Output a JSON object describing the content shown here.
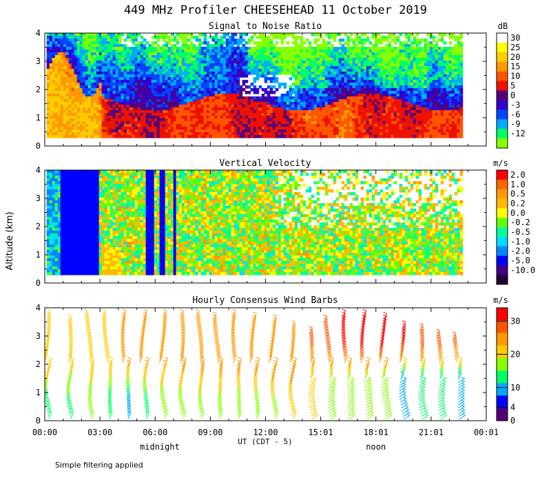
{
  "figure_title": "449 MHz Profiler CHEESEHEAD 11 October 2019",
  "y_axis_label": "Altitude (km)",
  "x_axis_label": "UT  (CDT - 5)",
  "note": "Simple filtering applied",
  "time_ticks": [
    "00:00",
    "03:00",
    "06:00",
    "09:00",
    "12:00",
    "15:01",
    "18:01",
    "21:01",
    "00:01"
  ],
  "local_markers": [
    {
      "label": "midnight",
      "hour_ut": 6.25
    },
    {
      "label": "noon",
      "hour_ut": 18.0
    }
  ],
  "altitude_ticks": [
    "0",
    "1",
    "2",
    "3",
    "4"
  ],
  "chart_data": [
    {
      "type": "heatmap",
      "title": "Signal to Noise Ratio",
      "xlabel": "UT (CDT - 5)",
      "ylabel": "Altitude (km)",
      "xlim_hours": [
        0,
        24
      ],
      "ylim_km": [
        0,
        4
      ],
      "data_range_hours": [
        0.1,
        22.7
      ],
      "min_altitude_km": 0.3,
      "colorbar": {
        "units": "dB",
        "labels": [
          "30",
          "25",
          "20",
          "15",
          "10",
          "5",
          "0",
          "-3",
          "-6",
          "-9",
          "-12"
        ],
        "colors": [
          "#ffffff",
          "#ffff00",
          "#ffcc00",
          "#ff9900",
          "#ff5500",
          "#ee1100",
          "#550077",
          "#3300cc",
          "#0044ff",
          "#00aaff",
          "#00ff66",
          "#88ff00"
        ]
      },
      "notes": "Highest SNR (15-25 dB, orange/yellow) below 2 km from 00:00-03:00; red/orange boundary layer below ~1.5 km through the day; weak signal (blue/green) above 2-3 km."
    },
    {
      "type": "heatmap",
      "title": "Vertical Velocity",
      "xlabel": "UT (CDT - 5)",
      "ylabel": "Altitude (km)",
      "xlim_hours": [
        0,
        24
      ],
      "ylim_km": [
        0,
        4
      ],
      "data_range_hours": [
        0.1,
        22.7
      ],
      "min_altitude_km": 0.3,
      "colorbar": {
        "units": "m/s",
        "labels": [
          "2.0",
          "1.0",
          "0.5",
          "0.2",
          "0.0",
          "-0.2",
          "-0.5",
          "-1.0",
          "-2.0",
          "-5.0",
          "-10.0"
        ],
        "colors": [
          "#ff0000",
          "#ff6600",
          "#ff9900",
          "#ffbb00",
          "#ffff00",
          "#66ff00",
          "#00ff99",
          "#00ddff",
          "#0088ff",
          "#0000ff",
          "#440088",
          "#220033"
        ]
      },
      "notes": "Strong downward motion (-2 to -5 m/s, purple/blue) during 00:00-03:00; mostly weak (-0.5 to +0.5 m/s) afterwards with gaps above 2 km."
    },
    {
      "type": "scatter",
      "title": "Hourly Consensus Wind Barbs",
      "xlabel": "UT (CDT - 5)",
      "ylabel": "Altitude (km)",
      "xlim_hours": [
        0,
        24
      ],
      "ylim_km": [
        0,
        4
      ],
      "colorbar": {
        "units": "m/s",
        "labels": [
          "30",
          "20",
          "10",
          "4",
          "0"
        ],
        "values": [
          30,
          20,
          10,
          4,
          0
        ],
        "colors": [
          "#ff0000",
          "#ff5500",
          "#ff9900",
          "#ffcc00",
          "#88ff00",
          "#00ff66",
          "#00aaff",
          "#0000ff",
          "#550077"
        ]
      },
      "hours": [
        0.3,
        1.5,
        2.6,
        3.6,
        4.6,
        5.6,
        6.6,
        7.6,
        8.6,
        9.6,
        10.6,
        11.6,
        12.6,
        13.6,
        14.6,
        15.6,
        16.6,
        17.6,
        18.6,
        19.6,
        20.6,
        21.6,
        22.6
      ],
      "max_altitude_km": [
        3.7,
        3.5,
        3.7,
        3.7,
        3.7,
        3.7,
        3.7,
        3.7,
        3.7,
        3.6,
        3.7,
        3.6,
        3.5,
        3.3,
        3.1,
        3.5,
        3.7,
        3.7,
        3.6,
        3.3,
        3.2,
        3.0,
        2.9
      ],
      "speed_ms": [
        15,
        13,
        15,
        15,
        16,
        16,
        16,
        17,
        18,
        18,
        18,
        18,
        19,
        20,
        23,
        26,
        28,
        29,
        28,
        27,
        26,
        25,
        24
      ],
      "low_level_speed_ms": [
        7,
        8,
        9,
        6,
        4,
        7,
        9,
        9,
        10,
        10,
        9,
        10,
        11,
        12,
        12,
        11,
        11,
        11,
        9,
        4,
        6,
        6,
        5
      ],
      "notes": "Winds from the south-west; speeds 15-20 m/s early, increasing to 25-30+ m/s above 2 km after 15:00 UT; lighter winds below 1.5 km."
    }
  ]
}
